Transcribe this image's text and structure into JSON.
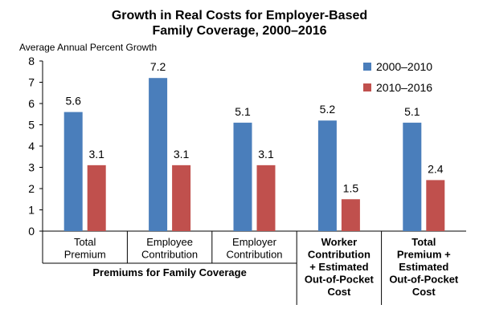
{
  "chart_data": {
    "type": "bar",
    "title": [
      "Growth in Real Costs for Employer-Based",
      "Family Coverage, 2000–2016"
    ],
    "ylabel": "Average Annual Percent Growth",
    "ylim": [
      0,
      8
    ],
    "yticks": [
      "0",
      "1",
      "2",
      "3",
      "4",
      "5",
      "6",
      "7",
      "8"
    ],
    "legend_position": "top-right",
    "categories": [
      [
        "Total",
        "Premium"
      ],
      [
        "Employee",
        "Contribution"
      ],
      [
        "Employer",
        "Contribution"
      ],
      [
        "Worker",
        "Contribution",
        "+ Estimated",
        "Out-of-Pocket",
        "Cost"
      ],
      [
        "Total",
        "Premium +",
        "Estimated",
        "Out-of-Pocket",
        "Cost"
      ]
    ],
    "bold_categories": [
      false,
      false,
      false,
      true,
      true
    ],
    "group_label": "Premiums for Family Coverage",
    "series": [
      {
        "name": "2000–2010",
        "color": "#4A7EBB",
        "values": [
          5.6,
          7.2,
          5.1,
          5.2,
          5.1
        ],
        "labels": [
          "5.6",
          "7.2",
          "5.1",
          "5.2",
          "5.1"
        ]
      },
      {
        "name": "2010–2016",
        "color": "#C0504D",
        "values": [
          3.1,
          3.1,
          3.1,
          1.5,
          2.4
        ],
        "labels": [
          "3.1",
          "3.1",
          "3.1",
          "1.5",
          "2.4"
        ]
      }
    ]
  }
}
